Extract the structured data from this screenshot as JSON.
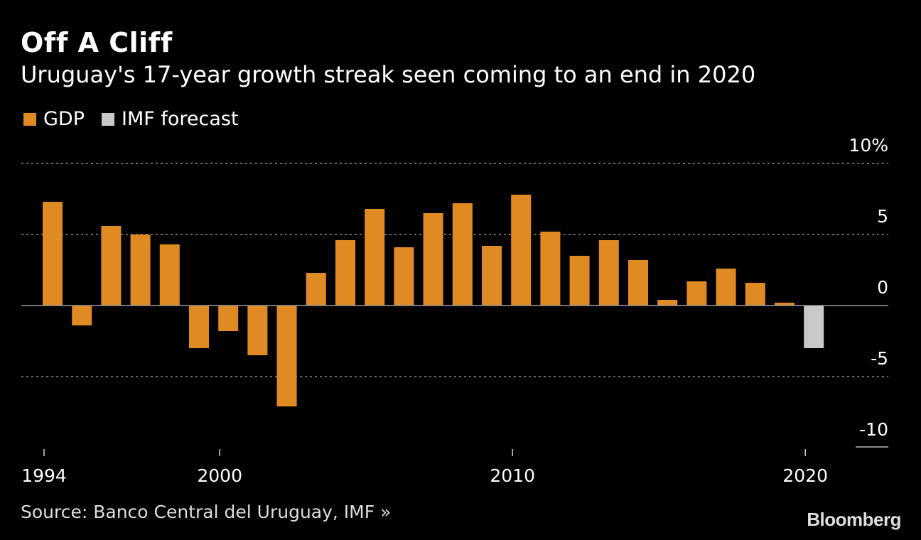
{
  "header": {
    "title": "Off A Cliff",
    "subtitle": "Uruguay's 17-year growth streak seen coming to an end in 2020"
  },
  "legend": [
    {
      "label": "GDP",
      "color": "#E08A23"
    },
    {
      "label": "IMF forecast",
      "color": "#C9C9C9"
    }
  ],
  "footer": {
    "source": "Source: Banco Central del Uruguay, IMF »",
    "brand": "Bloomberg"
  },
  "chart_data": {
    "type": "bar",
    "x": [
      1994,
      1995,
      1996,
      1997,
      1998,
      1999,
      2000,
      2001,
      2002,
      2003,
      2004,
      2005,
      2006,
      2007,
      2008,
      2009,
      2010,
      2011,
      2012,
      2013,
      2014,
      2015,
      2016,
      2017,
      2018,
      2019,
      2020
    ],
    "series": [
      {
        "name": "GDP",
        "color": "#E08A23",
        "values": [
          7.3,
          -1.4,
          5.6,
          5.0,
          4.3,
          -3.0,
          -1.8,
          -3.5,
          -7.1,
          2.3,
          4.6,
          6.8,
          4.1,
          6.5,
          7.2,
          4.2,
          7.8,
          5.2,
          3.5,
          4.6,
          3.2,
          0.4,
          1.7,
          2.6,
          1.6,
          0.2,
          null
        ]
      },
      {
        "name": "IMF forecast",
        "color": "#C9C9C9",
        "values": [
          null,
          null,
          null,
          null,
          null,
          null,
          null,
          null,
          null,
          null,
          null,
          null,
          null,
          null,
          null,
          null,
          null,
          null,
          null,
          null,
          null,
          null,
          null,
          null,
          null,
          null,
          -3.0
        ]
      }
    ],
    "ylim": [
      -10,
      10
    ],
    "yticks": [
      10,
      5,
      0,
      -5,
      -10
    ],
    "ytick_labels": [
      "10%",
      "5",
      "0",
      "-5",
      "-10"
    ],
    "xticks": [
      1994,
      2000,
      2010,
      2020
    ],
    "xtick_labels": [
      "1994",
      "2000",
      "2010",
      "2020"
    ],
    "grid": true,
    "legend_position": "top-left"
  }
}
